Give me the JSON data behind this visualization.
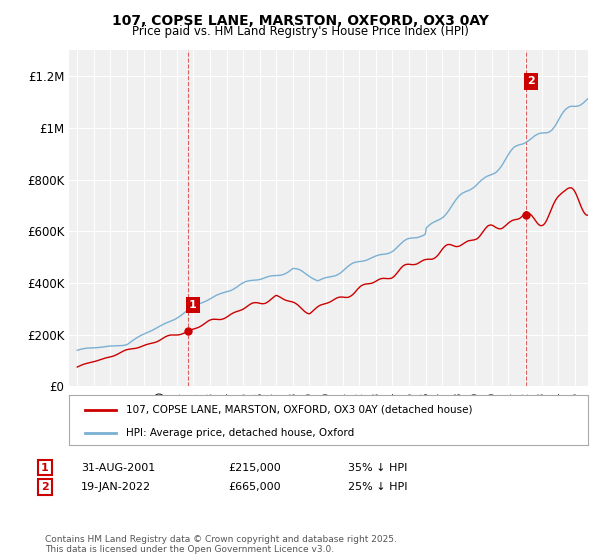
{
  "title": "107, COPSE LANE, MARSTON, OXFORD, OX3 0AY",
  "subtitle": "Price paid vs. HM Land Registry's House Price Index (HPI)",
  "ylabel_ticks": [
    "£0",
    "£200K",
    "£400K",
    "£600K",
    "£800K",
    "£1M",
    "£1.2M"
  ],
  "ytick_values": [
    0,
    200000,
    400000,
    600000,
    800000,
    1000000,
    1200000
  ],
  "ylim": [
    0,
    1300000
  ],
  "xlim_start": 1994.5,
  "xlim_end": 2025.8,
  "legend_line1": "107, COPSE LANE, MARSTON, OXFORD, OX3 0AY (detached house)",
  "legend_line2": "HPI: Average price, detached house, Oxford",
  "annotation1_date": "31-AUG-2001",
  "annotation1_price": "£215,000",
  "annotation1_hpi": "35% ↓ HPI",
  "annotation2_date": "19-JAN-2022",
  "annotation2_price": "£665,000",
  "annotation2_hpi": "25% ↓ HPI",
  "footnote": "Contains HM Land Registry data © Crown copyright and database right 2025.\nThis data is licensed under the Open Government Licence v3.0.",
  "red_color": "#cc0000",
  "blue_color": "#7ab0d4",
  "background_color": "#f0f0f0",
  "sale1_x": 2001.67,
  "sale1_y": 215000,
  "sale2_x": 2022.05,
  "sale2_y": 665000
}
